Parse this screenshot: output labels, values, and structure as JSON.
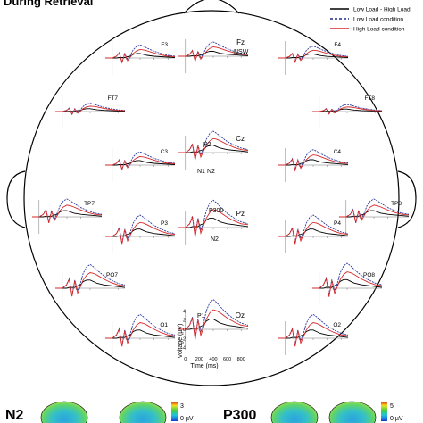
{
  "title_fragment": "During Retrieval",
  "legend": [
    {
      "label": "Low Load - High Load",
      "color": "#000000",
      "dash": "solid"
    },
    {
      "label": "Low Load condition",
      "color": "#1f2a8c",
      "dash": "dashed"
    },
    {
      "label": "High Load condition",
      "color": "#d62728",
      "dash": "solid"
    }
  ],
  "colors": {
    "difference": "#000000",
    "low_load": "#2b3a9e",
    "high_load": "#d62728"
  },
  "chart_data": {
    "type": "line",
    "x_unit": "ms",
    "y_unit": "µV",
    "xlim": [
      -100,
      900
    ],
    "ylim": [
      -4,
      4
    ],
    "series_names": [
      "Low Load - High Load",
      "Low Load condition",
      "High Load condition"
    ],
    "electrodes": [
      {
        "name": "F3",
        "component_labels": []
      },
      {
        "name": "Fz",
        "component_labels": [
          "NSW"
        ]
      },
      {
        "name": "F4",
        "component_labels": []
      },
      {
        "name": "FT7",
        "component_labels": []
      },
      {
        "name": "FT8",
        "component_labels": []
      },
      {
        "name": "C3",
        "component_labels": []
      },
      {
        "name": "Cz",
        "component_labels": [
          "P2",
          "N1",
          "N2"
        ]
      },
      {
        "name": "C4",
        "component_labels": []
      },
      {
        "name": "TP7",
        "component_labels": []
      },
      {
        "name": "TP8",
        "component_labels": []
      },
      {
        "name": "P3",
        "component_labels": []
      },
      {
        "name": "Pz",
        "component_labels": [
          "P300",
          "N2"
        ]
      },
      {
        "name": "P4",
        "component_labels": []
      },
      {
        "name": "PO7",
        "component_labels": []
      },
      {
        "name": "PO8",
        "component_labels": []
      },
      {
        "name": "O1",
        "component_labels": []
      },
      {
        "name": "Oz",
        "component_labels": [
          "P1"
        ]
      },
      {
        "name": "O2",
        "component_labels": []
      }
    ],
    "oz_axes": {
      "y_label": "Voltage (µV)",
      "x_label": "Time (ms)",
      "y_ticks": [
        "4",
        "2",
        "0",
        "-2",
        "-4"
      ],
      "x_ticks": [
        "0",
        "200",
        "400",
        "600",
        "800"
      ]
    },
    "waveform": {
      "times_ms": [
        -100,
        0,
        60,
        100,
        140,
        180,
        220,
        260,
        300,
        350,
        400,
        450,
        500,
        600,
        700,
        800,
        900
      ],
      "low_load": [
        0,
        0,
        0.4,
        1.2,
        -0.9,
        1.0,
        -0.3,
        0.6,
        1.8,
        2.6,
        2.9,
        2.6,
        2.2,
        1.5,
        1.0,
        0.6,
        0.4
      ],
      "high_load": [
        0,
        0,
        0.4,
        1.1,
        -1.0,
        0.9,
        -0.6,
        0.2,
        1.0,
        1.6,
        1.9,
        1.8,
        1.6,
        1.1,
        0.7,
        0.4,
        0.3
      ],
      "difference": [
        0,
        0,
        0,
        0.1,
        0.1,
        0.1,
        0.3,
        0.4,
        0.8,
        1.0,
        1.0,
        0.8,
        0.6,
        0.4,
        0.3,
        0.2,
        0.1
      ]
    }
  },
  "topomaps": [
    {
      "component": "N2",
      "scale_max": "3",
      "scale_min": "0 µV"
    },
    {
      "component": "P300",
      "scale_max": "5",
      "scale_min": "0 µV"
    }
  ]
}
